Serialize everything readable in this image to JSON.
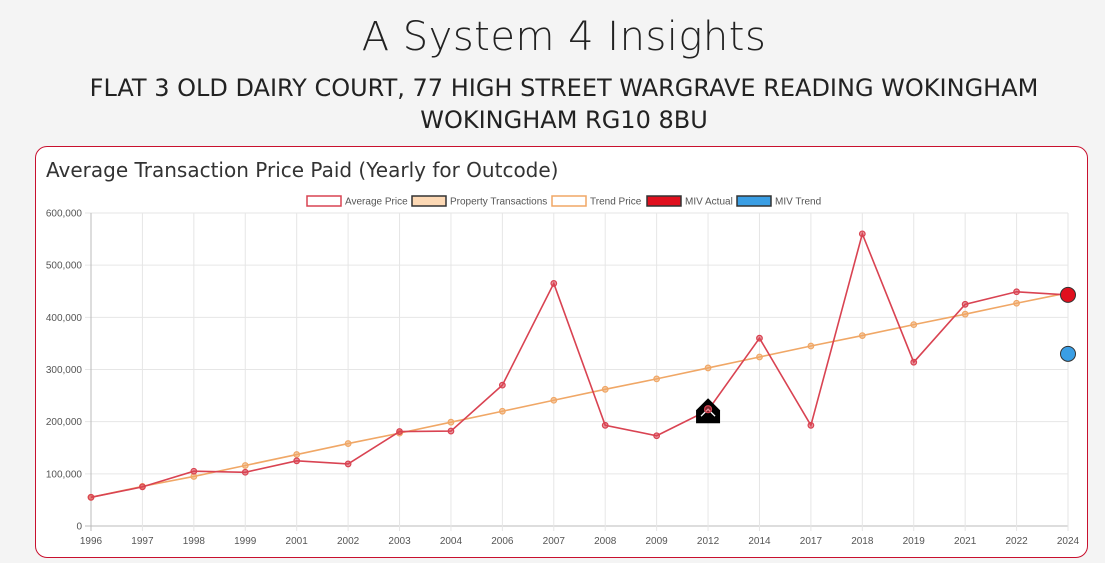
{
  "header": {
    "title": "A System 4 Insights",
    "address_line1": "FLAT 3 OLD DAIRY COURT, 77 HIGH STREET WARGRAVE READING WOKINGHAM",
    "address_line2": "WOKINGHAM RG10 8BU"
  },
  "card": {
    "title": "Average Transaction Price Paid (Yearly for Outcode)"
  },
  "colors": {
    "average": "#d94352",
    "trend": "#f0a766",
    "miv_actual": "#c8102e",
    "miv_trend": "#3a9ee4",
    "border": "#c8102e"
  },
  "chart_data": {
    "type": "line",
    "title": "Average Transaction Price Paid (Yearly for Outcode)",
    "categories": [
      "1996",
      "1997",
      "1998",
      "1999",
      "2001",
      "2002",
      "2003",
      "2004",
      "2006",
      "2007",
      "2008",
      "2009",
      "2012",
      "2014",
      "2017",
      "2018",
      "2019",
      "2021",
      "2022",
      "2024"
    ],
    "ylim": [
      0,
      600000
    ],
    "yticks": [
      0,
      100000,
      200000,
      300000,
      400000,
      500000,
      600000
    ],
    "ytick_labels": [
      "0",
      "100,000",
      "200,000",
      "300,000",
      "400,000",
      "500,000",
      "600,000"
    ],
    "grid": true,
    "legend_position": "top",
    "legend": [
      {
        "name": "Average Price",
        "swatch_fill": "#ffffff",
        "swatch_border": "#d94352"
      },
      {
        "name": "Property Transactions",
        "swatch_fill": "#fdd9b5",
        "swatch_border": "#333333"
      },
      {
        "name": "Trend Price",
        "swatch_fill": "#ffffff",
        "swatch_border": "#f0a766"
      },
      {
        "name": "MIV Actual",
        "swatch_fill": "#e0101e",
        "swatch_border": "#333333"
      },
      {
        "name": "MIV Trend",
        "swatch_fill": "#3a9ee4",
        "swatch_border": "#333333"
      }
    ],
    "series": [
      {
        "name": "Average Price",
        "values": [
          55000,
          75000,
          105000,
          103000,
          125000,
          119000,
          181000,
          182000,
          270000,
          465000,
          193000,
          173000,
          222000,
          360000,
          193000,
          560000,
          314000,
          425000,
          449000,
          443000
        ]
      },
      {
        "name": "Trend Price",
        "values": [
          55000,
          76000,
          95000,
          116000,
          137000,
          158000,
          178000,
          199000,
          220000,
          241000,
          262000,
          282000,
          303000,
          324000,
          345000,
          365000,
          386000,
          406000,
          427000,
          447000
        ]
      },
      {
        "name": "MIV Actual",
        "points": [
          {
            "x": "2024",
            "y": 443000
          }
        ]
      },
      {
        "name": "MIV Trend",
        "points": [
          {
            "x": "2024",
            "y": 330000
          }
        ]
      }
    ],
    "annotations": [
      {
        "type": "house-marker",
        "x": "2012",
        "y": 222000
      }
    ]
  }
}
